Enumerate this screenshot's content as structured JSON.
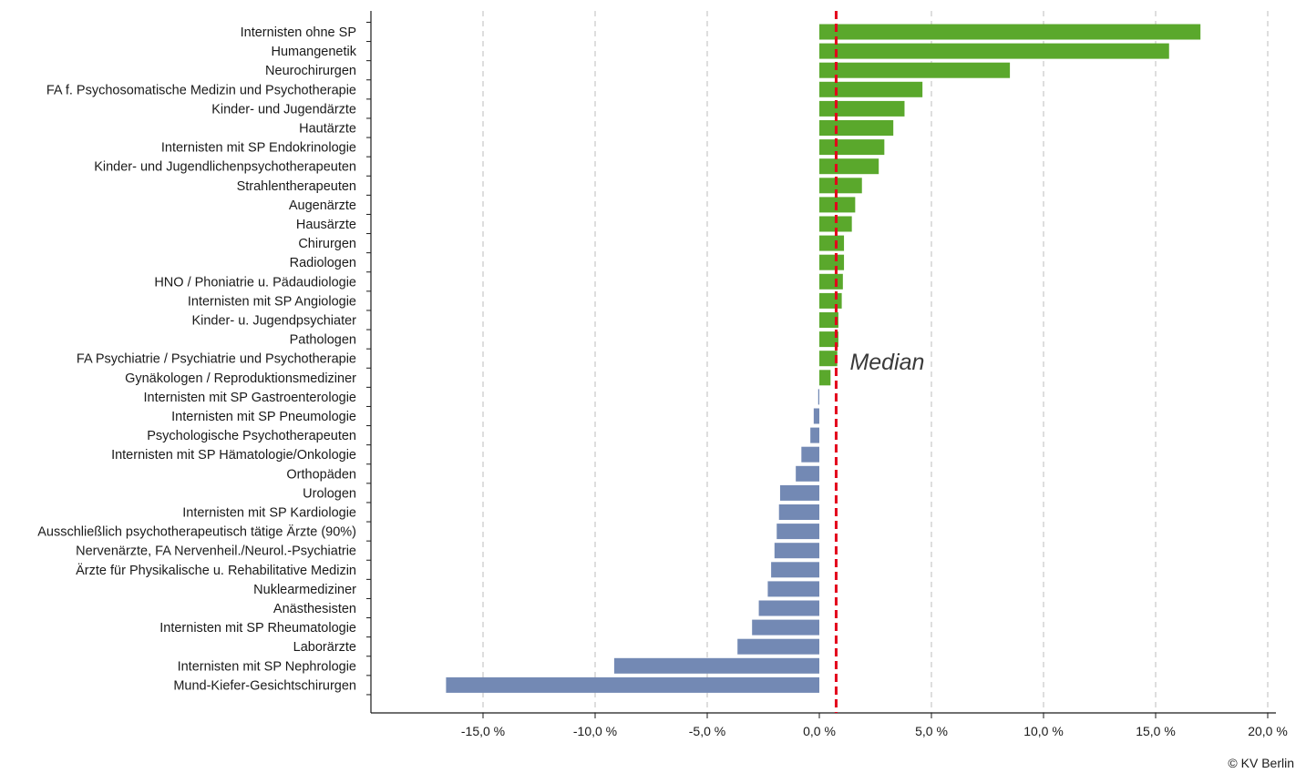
{
  "chart_data": {
    "type": "bar",
    "orientation": "horizontal",
    "categories": [
      "Internisten ohne SP",
      "Humangenetik",
      "Neurochirurgen",
      "FA f. Psychosomatische Medizin und Psychotherapie",
      "Kinder- und Jugendärzte",
      "Hautärzte",
      "Internisten mit SP Endokrinologie",
      "Kinder- und Jugendlichenpsychotherapeuten",
      "Strahlentherapeuten",
      "Augenärzte",
      "Hausärzte",
      "Chirurgen",
      "Radiologen",
      "HNO / Phoniatrie u. Pädaudiologie",
      "Internisten mit SP Angiologie",
      "Kinder- u. Jugendpsychiater",
      "Pathologen",
      "FA Psychiatrie / Psychiatrie und Psychotherapie",
      "Gynäkologen / Reproduktionsmediziner",
      "Internisten mit SP Gastroenterologie",
      "Internisten mit SP Pneumologie",
      "Psychologische Psychotherapeuten",
      "Internisten mit SP Hämatologie/Onkologie",
      "Orthopäden",
      "Urologen",
      "Internisten mit SP Kardiologie",
      "Ausschließlich psychotherapeutisch tätige Ärzte (90%)",
      "Nervenärzte, FA Nervenheil./Neurol.-Psychiatrie",
      "Ärzte für Physikalische u. Rehabilitative Medizin",
      "Nuklearmediziner",
      "Anästhesisten",
      "Internisten mit SP Rheumatologie",
      "Laborärzte",
      "Internisten mit SP Nephrologie",
      "Mund-Kiefer-Gesichtschirurgen"
    ],
    "values": [
      17.0,
      15.6,
      8.5,
      4.6,
      3.8,
      3.3,
      2.9,
      2.65,
      1.9,
      1.6,
      1.45,
      1.1,
      1.1,
      1.05,
      1.0,
      0.85,
      0.85,
      0.8,
      0.5,
      -0.05,
      -0.25,
      -0.4,
      -0.8,
      -1.05,
      -1.75,
      -1.8,
      -1.9,
      -2.0,
      -2.15,
      -2.3,
      -2.7,
      -3.0,
      -3.65,
      -9.15,
      -16.65
    ],
    "xlim": [
      -20,
      20.5
    ],
    "xticks": [
      -15,
      -10,
      -5,
      0,
      5,
      10,
      15,
      20
    ],
    "xtick_labels": [
      "-15,0 %",
      "-10,0 %",
      "-5,0 %",
      "0,0 %",
      "5,0 %",
      "10,0 %",
      "15,0 %",
      "20,0 %"
    ],
    "median": 0.75,
    "median_label": "Median",
    "grid": "vertical dashed",
    "colors": {
      "positive": "#5aa82c",
      "negative": "#7389b4",
      "median_line": "#e3001b",
      "grid": "#c8c8c8",
      "axis": "#1a1a1a"
    }
  },
  "footer": {
    "copyright": "© KV Berlin"
  }
}
